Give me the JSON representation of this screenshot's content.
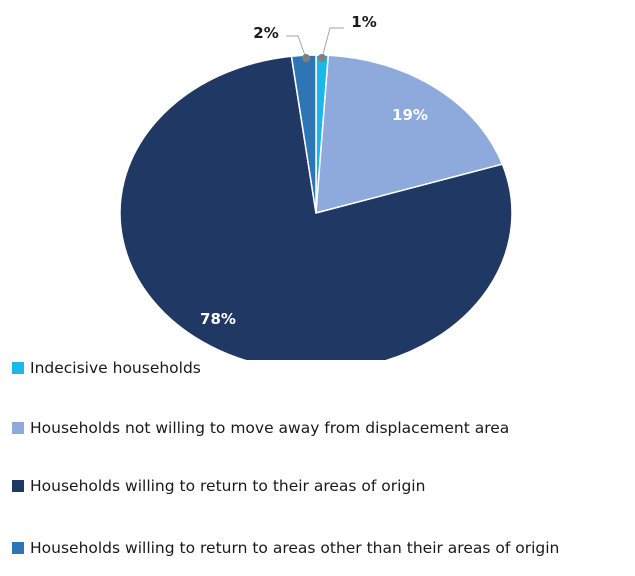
{
  "chart_data": {
    "type": "pie",
    "slices": [
      {
        "label": "Indecisive households",
        "value": 1,
        "value_label": "1%",
        "color": "#1ab7ea"
      },
      {
        "label": "Households not willing to move away from displacement area",
        "value": 19,
        "value_label": "19%",
        "color": "#8ea9db"
      },
      {
        "label": "Households willing to return to their areas of origin",
        "value": 78,
        "value_label": "78%",
        "color": "#1f3864"
      },
      {
        "label": "Households willing to return to areas other than their areas of origin",
        "value": 2,
        "value_label": "2%",
        "color": "#2e75b6"
      }
    ],
    "legend_position": "bottom",
    "start_angle": "top, clockwise"
  }
}
